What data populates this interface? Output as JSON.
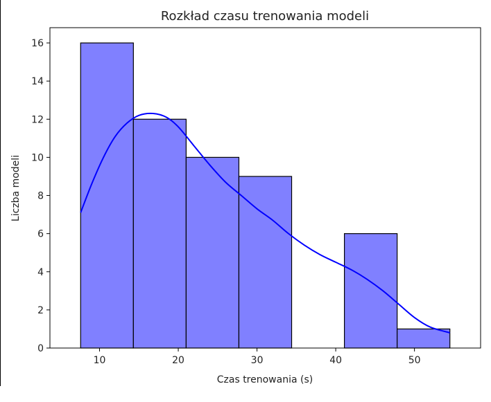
{
  "chart_data": {
    "type": "bar",
    "subtype": "histogram-with-kde",
    "title": "Rozkład czasu trenowania modeli",
    "xlabel": "Czas trenowania (s)",
    "ylabel": "Liczba modeli",
    "bins": [
      {
        "x0": 7.6,
        "x1": 14.3,
        "count": 16
      },
      {
        "x0": 14.3,
        "x1": 21.0,
        "count": 12
      },
      {
        "x0": 21.0,
        "x1": 27.7,
        "count": 10
      },
      {
        "x0": 27.7,
        "x1": 34.4,
        "count": 9
      },
      {
        "x0": 34.4,
        "x1": 41.1,
        "count": 0
      },
      {
        "x0": 41.1,
        "x1": 47.8,
        "count": 6
      },
      {
        "x0": 47.8,
        "x1": 54.5,
        "count": 1
      }
    ],
    "kde": {
      "x": [
        7.6,
        9.0,
        10.5,
        12.0,
        13.5,
        15.0,
        16.8,
        18.5,
        20.0,
        22.0,
        24.0,
        26.0,
        28.0,
        30.0,
        32.0,
        34.0,
        36.0,
        38.0,
        40.0,
        42.0,
        44.0,
        46.0,
        48.0,
        50.0,
        52.0,
        54.5
      ],
      "y": [
        7.1,
        8.6,
        10.0,
        11.1,
        11.8,
        12.2,
        12.3,
        12.1,
        11.6,
        10.6,
        9.6,
        8.7,
        8.0,
        7.3,
        6.7,
        6.0,
        5.4,
        4.9,
        4.5,
        4.1,
        3.6,
        3.0,
        2.3,
        1.6,
        1.1,
        0.8
      ]
    },
    "xlim": [
      3.7,
      58.4
    ],
    "ylim": [
      0,
      16.8
    ],
    "xticks": [
      10,
      20,
      30,
      40,
      50
    ],
    "yticks": [
      0,
      2,
      4,
      6,
      8,
      10,
      12,
      14,
      16
    ],
    "grid": false,
    "colors": {
      "bar_fill": "#8080ff",
      "bar_edge": "#000000",
      "kde_line": "#0000ff"
    }
  }
}
